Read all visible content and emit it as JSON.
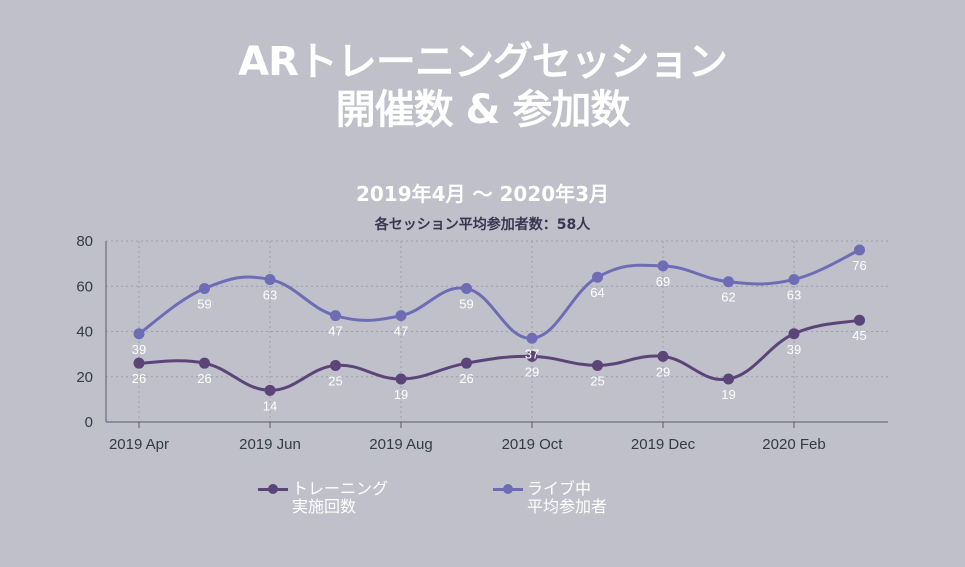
{
  "chart_data": {
    "type": "line",
    "title": [
      "ARトレーニングセッション",
      "開催数 & 参加数"
    ],
    "subtitle": "2019年4月 ～ 2020年3月",
    "note": "各セッション平均参加者数：58人",
    "x_ticks": [
      "2019 Apr",
      "2019 Jun",
      "2019 Aug",
      "2019 Oct",
      "2019 Dec",
      "2020 Feb"
    ],
    "y_ticks": [
      0,
      20,
      40,
      60,
      80
    ],
    "ylim": [
      0,
      80
    ],
    "grid": true,
    "legend_position": "bottom",
    "series": [
      {
        "name": [
          "トレーニング",
          "実施回数"
        ],
        "color": "#5b4578",
        "values": [
          26,
          26,
          14,
          25,
          19,
          26,
          29,
          25,
          29,
          19,
          39,
          45
        ]
      },
      {
        "name": [
          "ライブ中",
          "平均参加者"
        ],
        "color": "#6f6cb6",
        "values": [
          39,
          59,
          63,
          47,
          47,
          59,
          37,
          64,
          69,
          62,
          63,
          76
        ]
      }
    ]
  }
}
